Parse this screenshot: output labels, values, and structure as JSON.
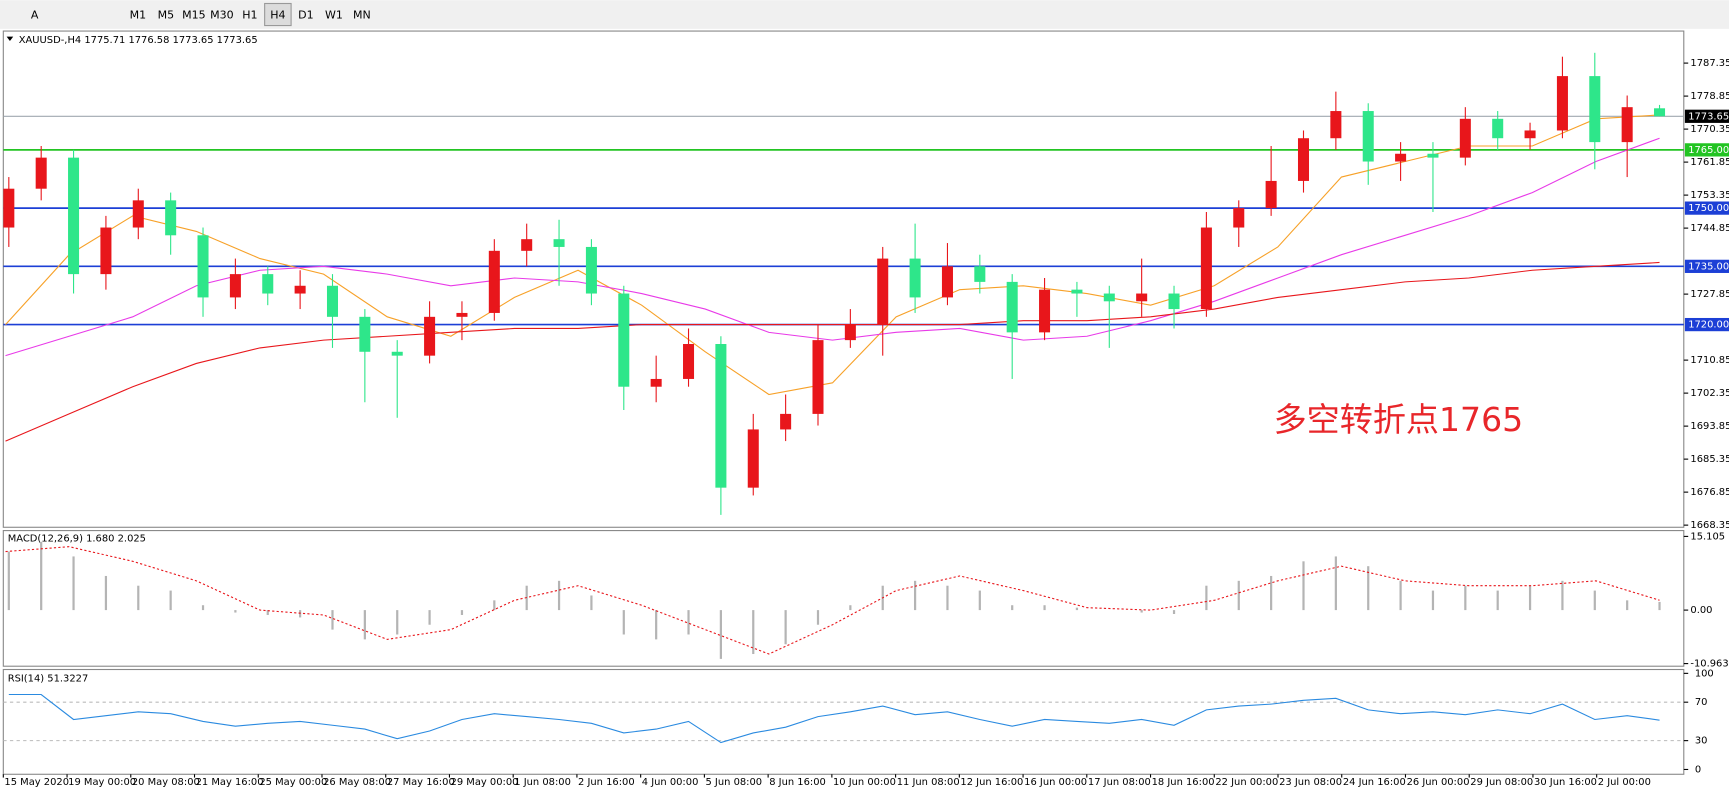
{
  "toolbar": {
    "tools": [
      "A"
    ],
    "periods": [
      "M1",
      "M5",
      "M15",
      "M30",
      "H1",
      "H4",
      "D1",
      "W1",
      "MN"
    ],
    "active": "H4"
  },
  "chart_data": [
    {
      "type": "candlestick",
      "title": "XAUUSD-,H4 1775.71 1776.58 1773.65 1773.65",
      "ylim": [
        1667.8,
        1795.6
      ],
      "yticks": [
        1787.35,
        1778.85,
        1770.35,
        1761.85,
        1753.35,
        1744.85,
        1727.85,
        1710.85,
        1702.35,
        1693.85,
        1685.35,
        1676.85,
        1668.35
      ],
      "up_color": "#e8161b",
      "down_color": "#2ee68a",
      "candles": [
        [
          1745,
          1758,
          1740,
          1755
        ],
        [
          1755,
          1766,
          1752,
          1763
        ],
        [
          1763,
          1765,
          1728,
          1733
        ],
        [
          1733,
          1748,
          1729,
          1745
        ],
        [
          1745,
          1755,
          1742,
          1752
        ],
        [
          1752,
          1754,
          1738,
          1743
        ],
        [
          1743,
          1745,
          1722,
          1727
        ],
        [
          1727,
          1737,
          1724,
          1733
        ],
        [
          1733,
          1735,
          1725,
          1728
        ],
        [
          1728,
          1734,
          1724,
          1730
        ],
        [
          1730,
          1733,
          1714,
          1722
        ],
        [
          1722,
          1724,
          1700,
          1713
        ],
        [
          1713,
          1716,
          1696,
          1712
        ],
        [
          1712,
          1726,
          1710,
          1722
        ],
        [
          1722,
          1726,
          1716,
          1723
        ],
        [
          1723,
          1742,
          1721,
          1739
        ],
        [
          1739,
          1746,
          1735,
          1742
        ],
        [
          1742,
          1747,
          1730,
          1740
        ],
        [
          1740,
          1742,
          1725,
          1728
        ],
        [
          1728,
          1730,
          1698,
          1704
        ],
        [
          1704,
          1712,
          1700,
          1706
        ],
        [
          1706,
          1719,
          1704,
          1715
        ],
        [
          1715,
          1717,
          1671,
          1678
        ],
        [
          1678,
          1697,
          1676,
          1693
        ],
        [
          1693,
          1702,
          1690,
          1697
        ],
        [
          1697,
          1720,
          1694,
          1716
        ],
        [
          1716,
          1724,
          1714,
          1720
        ],
        [
          1720,
          1740,
          1712,
          1737
        ],
        [
          1737,
          1746,
          1723,
          1727
        ],
        [
          1727,
          1741,
          1725,
          1735
        ],
        [
          1735,
          1738,
          1728,
          1731
        ],
        [
          1731,
          1733,
          1706,
          1718
        ],
        [
          1718,
          1732,
          1716,
          1729
        ],
        [
          1729,
          1731,
          1722,
          1728
        ],
        [
          1728,
          1730,
          1714,
          1726
        ],
        [
          1726,
          1737,
          1722,
          1728
        ],
        [
          1728,
          1730,
          1719,
          1724
        ],
        [
          1724,
          1749,
          1722,
          1745
        ],
        [
          1745,
          1752,
          1740,
          1750
        ],
        [
          1750,
          1766,
          1748,
          1757
        ],
        [
          1757,
          1770,
          1754,
          1768
        ],
        [
          1768,
          1780,
          1765,
          1775
        ],
        [
          1775,
          1777,
          1756,
          1762
        ],
        [
          1762,
          1767,
          1757,
          1764
        ],
        [
          1764,
          1767,
          1749,
          1763
        ],
        [
          1763,
          1776,
          1761,
          1773
        ],
        [
          1773,
          1775,
          1765,
          1768
        ],
        [
          1768,
          1772,
          1765,
          1770
        ],
        [
          1770,
          1789,
          1768,
          1784
        ],
        [
          1784,
          1790,
          1760,
          1767
        ],
        [
          1767,
          1779,
          1758,
          1776
        ],
        [
          1775.71,
          1776.58,
          1773.65,
          1773.65
        ]
      ],
      "series": [
        {
          "color": "#f7a128",
          "values": [
            1720,
            1738,
            1748,
            1744,
            1737,
            1733,
            1722,
            1717,
            1727,
            1734,
            1725,
            1713,
            1702,
            1705,
            1722,
            1729,
            1730,
            1728,
            1725,
            1730,
            1740,
            1758,
            1762,
            1766,
            1766,
            1773,
            1774
          ]
        },
        {
          "color": "#e83ae8",
          "values": [
            1712,
            1717,
            1722,
            1730,
            1734,
            1735,
            1733,
            1730,
            1732,
            1731,
            1728,
            1724,
            1718,
            1716,
            1718,
            1719,
            1716,
            1717,
            1721,
            1726,
            1732,
            1738,
            1743,
            1748,
            1754,
            1762,
            1768
          ]
        },
        {
          "color": "#e8161b",
          "values": [
            1690,
            1697,
            1704,
            1710,
            1714,
            1716,
            1717,
            1718,
            1719,
            1719,
            1720,
            1720,
            1720,
            1720,
            1720,
            1720,
            1721,
            1721,
            1722,
            1724,
            1727,
            1729,
            1731,
            1732,
            1734,
            1735,
            1736
          ]
        }
      ],
      "levels": [
        {
          "value": 1765,
          "label": "1765.00",
          "color": "#22c422"
        },
        {
          "value": 1750,
          "label": "1750.00",
          "color": "#1c3fd6"
        },
        {
          "value": 1735,
          "label": "1735.00",
          "color": "#1c3fd6"
        },
        {
          "value": 1720,
          "label": "1720.00",
          "color": "#1c3fd6"
        }
      ],
      "price_line": 1773.65,
      "annotation": "多空转折点1765",
      "x_labels": [
        "15 May 2020",
        "19 May 00:00",
        "20 May 08:00",
        "21 May 16:00",
        "25 May 00:00",
        "26 May 08:00",
        "27 May 16:00",
        "29 May 00:00",
        "1 Jun 08:00",
        "2 Jun 16:00",
        "4 Jun 00:00",
        "5 Jun 08:00",
        "8 Jun 16:00",
        "10 Jun 00:00",
        "11 Jun 08:00",
        "12 Jun 16:00",
        "16 Jun 00:00",
        "17 Jun 08:00",
        "18 Jun 16:00",
        "22 Jun 00:00",
        "23 Jun 08:00",
        "24 Jun 16:00",
        "26 Jun 00:00",
        "29 Jun 08:00",
        "30 Jun 16:00",
        "2 Jul 00:00"
      ]
    },
    {
      "type": "macd",
      "title": "MACD(12,26,9) 1.680 2.025",
      "ylim": [
        -11.5,
        16.3
      ],
      "yticks": [
        15.105,
        {
          "value": 0,
          "label": "0.00"
        },
        -10.963
      ],
      "histogram": {
        "color": "#b4b4b4",
        "values": [
          12,
          14,
          11,
          7,
          5,
          4,
          1,
          -0.5,
          -1,
          -1.5,
          -4,
          -6,
          -5,
          -3,
          -1,
          2,
          5,
          6,
          3,
          -5,
          -6,
          -5,
          -10,
          -9,
          -7,
          -3,
          1,
          5,
          6,
          5,
          4,
          1,
          1,
          0.5,
          0,
          -0.5,
          -0.8,
          5,
          6,
          7,
          10,
          11,
          9,
          6,
          4,
          5,
          4,
          5,
          6,
          4,
          2,
          1.68
        ]
      },
      "signal": {
        "color": "#e8161b",
        "values": [
          12,
          13,
          10,
          6,
          0,
          -1,
          -6,
          -4,
          2,
          5,
          1,
          -4,
          -9,
          -3,
          4,
          7,
          4,
          0.5,
          0,
          2,
          6,
          9,
          6,
          5,
          5,
          6,
          2.025
        ]
      }
    },
    {
      "type": "line",
      "title": "RSI(14) 51.3227",
      "ylim": [
        -5,
        104
      ],
      "yticks": [
        100,
        70,
        30,
        0
      ],
      "levels": [
        70,
        30
      ],
      "series": [
        {
          "color": "#2a8ae0",
          "values": [
            78,
            78,
            52,
            56,
            60,
            58,
            50,
            45,
            48,
            50,
            46,
            42,
            32,
            40,
            52,
            58,
            55,
            52,
            48,
            38,
            42,
            50,
            28,
            38,
            44,
            55,
            60,
            66,
            57,
            60,
            52,
            45,
            52,
            50,
            48,
            52,
            46,
            62,
            66,
            68,
            72,
            74,
            62,
            58,
            60,
            57,
            62,
            58,
            68,
            52,
            56,
            51.32
          ]
        }
      ]
    }
  ]
}
